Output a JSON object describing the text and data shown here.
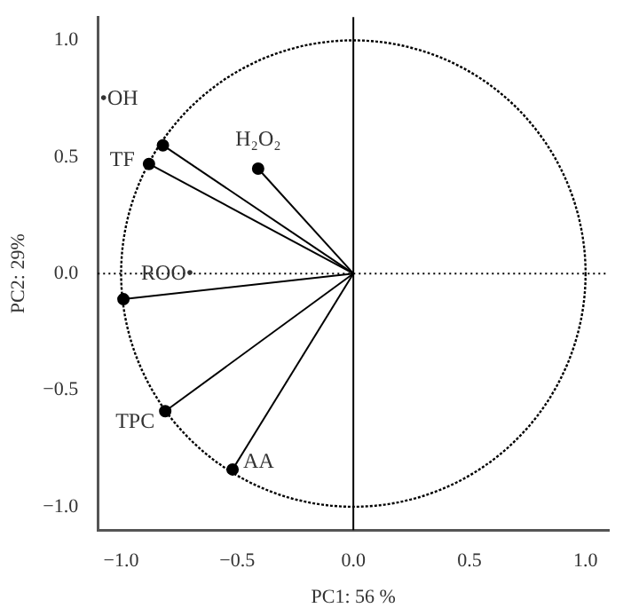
{
  "chart_data": {
    "type": "line",
    "xlabel": "PC1: 56 %",
    "ylabel": "PC2: 29%",
    "xlim": [
      -1.1,
      1.1
    ],
    "ylim": [
      -1.1,
      1.1
    ],
    "xticks": [
      {
        "value": -1,
        "label": "−1.0"
      },
      {
        "value": -0.5,
        "label": "−0.5"
      },
      {
        "value": 0,
        "label": "0.0"
      },
      {
        "value": 0.5,
        "label": "0.5"
      },
      {
        "value": 1,
        "label": "1.0"
      }
    ],
    "yticks": [
      {
        "value": -1,
        "label": "−1.0"
      },
      {
        "value": -0.5,
        "label": "−0.5"
      },
      {
        "value": 0,
        "label": "0.0"
      },
      {
        "value": 0.5,
        "label": "0.5"
      },
      {
        "value": 1,
        "label": "1.0"
      }
    ],
    "grid": false,
    "legend": false,
    "marker": "circle",
    "line_style": "solid",
    "ref_lines": [
      {
        "axis": "x",
        "value": 0,
        "line_style": "solid",
        "color": "#000000"
      },
      {
        "axis": "y",
        "value": 0,
        "line_style": "dotted",
        "color": "#000000"
      }
    ],
    "series": [
      {
        "name": "•OH",
        "color": "#000000",
        "x": [
          0,
          -0.82
        ],
        "values": [
          0,
          0.55
        ]
      },
      {
        "name": "TF",
        "color": "#000000",
        "x": [
          0,
          -0.88
        ],
        "values": [
          0,
          0.47
        ]
      },
      {
        "name": "H₂O₂",
        "color": "#000000",
        "x": [
          0,
          -0.41
        ],
        "values": [
          0,
          0.45
        ]
      },
      {
        "name": "ROO•",
        "color": "#000000",
        "x": [
          0,
          -0.99
        ],
        "values": [
          0,
          -0.11
        ]
      },
      {
        "name": "TPC",
        "color": "#000000",
        "x": [
          0,
          -0.81
        ],
        "values": [
          0,
          -0.59
        ]
      },
      {
        "name": "AA",
        "color": "#000000",
        "x": [
          0,
          -0.52
        ],
        "values": [
          0,
          -0.84
        ]
      }
    ]
  }
}
